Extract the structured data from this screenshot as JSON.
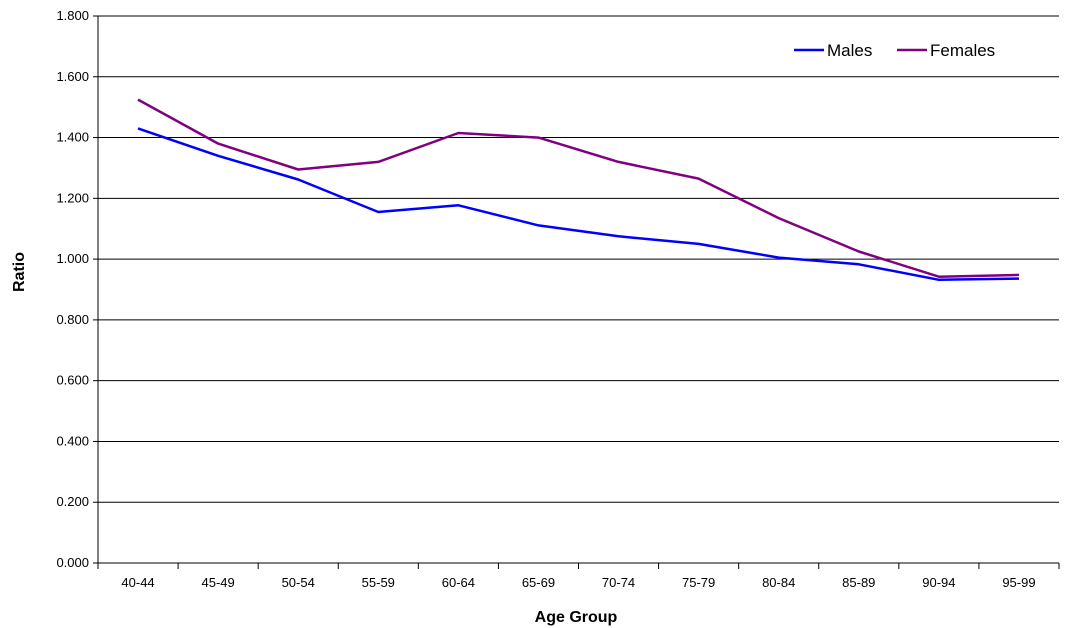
{
  "chart_data": {
    "type": "line",
    "categories": [
      "40-44",
      "45-49",
      "50-54",
      "55-59",
      "60-64",
      "65-69",
      "70-74",
      "75-79",
      "80-84",
      "85-89",
      "90-94",
      "95-99"
    ],
    "series": [
      {
        "name": "Males",
        "color": "#0000ff",
        "values": [
          1.43,
          1.34,
          1.262,
          1.155,
          1.177,
          1.111,
          1.075,
          1.05,
          1.005,
          0.983,
          0.932,
          0.936
        ]
      },
      {
        "name": "Females",
        "color": "#800080",
        "values": [
          1.525,
          1.38,
          1.295,
          1.32,
          1.415,
          1.4,
          1.32,
          1.265,
          1.135,
          1.025,
          0.942,
          0.948
        ]
      }
    ],
    "xlabel": "Age Group",
    "ylabel": "Ratio",
    "ylim": [
      0,
      1.8
    ],
    "yticks": [
      "0.000",
      "0.200",
      "0.400",
      "0.600",
      "0.800",
      "1.000",
      "1.200",
      "1.400",
      "1.600",
      "1.800"
    ],
    "grid": true,
    "legend": "top-right"
  }
}
